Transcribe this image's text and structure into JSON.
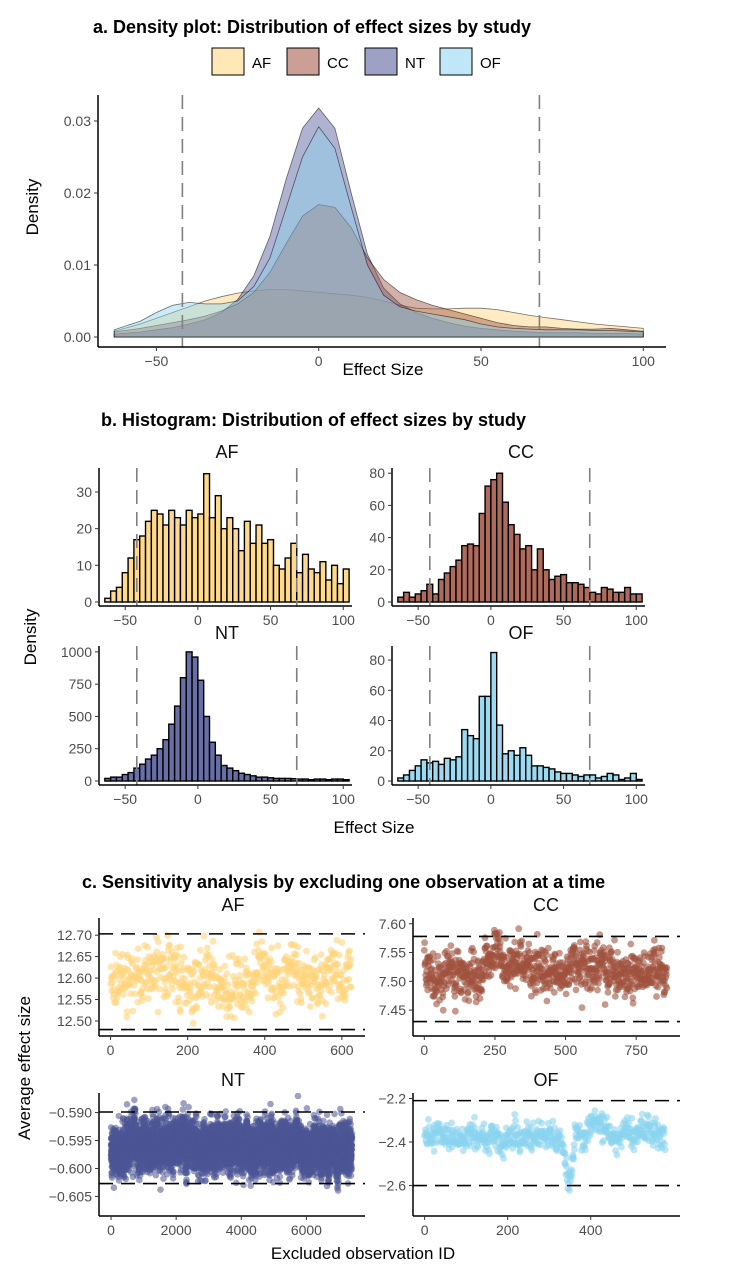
{
  "colors": {
    "AF": "#FFD37A",
    "CC": "#A0513E",
    "NT": "#4D5596",
    "OF": "#8BD3F0"
  },
  "panel_a": {
    "title": "a. Density plot: Distribution of effect sizes by study",
    "legend": [
      "AF",
      "CC",
      "NT",
      "OF"
    ],
    "xlabel": "Effect Size",
    "ylabel": "Density"
  },
  "panel_b": {
    "title": "b. Histogram: Distribution of effect sizes by study",
    "xlabel": "Effect Size",
    "ylabel": "Density",
    "facets": [
      "AF",
      "CC",
      "NT",
      "OF"
    ]
  },
  "panel_c": {
    "title": "c. Sensitivity analysis by excluding one observation at a time",
    "xlabel": "Excluded observation ID",
    "ylabel": "Average effect size",
    "facets": [
      "AF",
      "CC",
      "NT",
      "OF"
    ]
  },
  "chart_data": [
    {
      "type": "area",
      "title": "a. Density plot: Distribution of effect sizes by study",
      "xlabel": "Effect Size",
      "ylabel": "Density",
      "xlim": [
        -63,
        104
      ],
      "ylim": [
        0,
        0.033
      ],
      "x_ticks": [
        -50,
        0,
        50,
        100
      ],
      "x_tick_labels": [
        "−50",
        "0",
        "50",
        "100"
      ],
      "y_ticks": [
        0,
        0.01,
        0.02,
        0.03
      ],
      "y_tick_labels": [
        "0.00",
        "0.01",
        "0.02",
        "0.03"
      ],
      "legend_position": "top",
      "reference_lines_x": [
        -42,
        68
      ],
      "x": [
        -63,
        -55,
        -50,
        -45,
        -40,
        -35,
        -30,
        -25,
        -20,
        -15,
        -10,
        -5,
        0,
        5,
        10,
        15,
        20,
        25,
        30,
        35,
        40,
        45,
        50,
        55,
        60,
        65,
        70,
        75,
        80,
        85,
        90,
        95,
        100
      ],
      "series": [
        {
          "name": "AF",
          "values": [
            0.0008,
            0.0018,
            0.0026,
            0.0034,
            0.0042,
            0.005,
            0.0056,
            0.0061,
            0.0064,
            0.0066,
            0.0066,
            0.0064,
            0.0062,
            0.006,
            0.0058,
            0.0055,
            0.005,
            0.0044,
            0.004,
            0.0039,
            0.0039,
            0.004,
            0.004,
            0.0038,
            0.0034,
            0.003,
            0.0027,
            0.0024,
            0.0021,
            0.0018,
            0.0016,
            0.0014,
            0.0012
          ]
        },
        {
          "name": "CC",
          "values": [
            0.0007,
            0.0012,
            0.0016,
            0.002,
            0.0024,
            0.0029,
            0.0036,
            0.0046,
            0.0062,
            0.009,
            0.013,
            0.0168,
            0.0184,
            0.018,
            0.0152,
            0.011,
            0.008,
            0.0062,
            0.0052,
            0.0044,
            0.0038,
            0.0032,
            0.0026,
            0.002,
            0.0016,
            0.0014,
            0.0014,
            0.0012,
            0.0011,
            0.0011,
            0.0012,
            0.001,
            0.0008
          ]
        },
        {
          "name": "NT",
          "values": [
            0.0004,
            0.0007,
            0.001,
            0.0013,
            0.0018,
            0.0024,
            0.0034,
            0.0052,
            0.0085,
            0.014,
            0.022,
            0.029,
            0.0318,
            0.029,
            0.02,
            0.0115,
            0.0068,
            0.0046,
            0.0034,
            0.0026,
            0.002,
            0.0015,
            0.0012,
            0.001,
            0.0008,
            0.0007,
            0.0006,
            0.0006,
            0.0006,
            0.0005,
            0.0005,
            0.0005,
            0.0004
          ]
        },
        {
          "name": "OF",
          "values": [
            0.001,
            0.0022,
            0.0034,
            0.0044,
            0.0048,
            0.0046,
            0.0046,
            0.005,
            0.007,
            0.011,
            0.018,
            0.025,
            0.0292,
            0.0262,
            0.018,
            0.01,
            0.0058,
            0.0042,
            0.0036,
            0.0032,
            0.0028,
            0.0024,
            0.0018,
            0.0014,
            0.0012,
            0.0011,
            0.001,
            0.001,
            0.001,
            0.0009,
            0.0009,
            0.0008,
            0.0007
          ]
        }
      ]
    },
    {
      "type": "bar",
      "title": "b. Histogram: Distribution of effect sizes by study",
      "xlabel": "Effect Size",
      "ylabel": "Density",
      "bin_width": 4,
      "bin_start": -64,
      "xlim": [
        -68,
        106
      ],
      "reference_lines_x": [
        -42,
        68
      ],
      "x_ticks": [
        -50,
        0,
        50,
        100
      ],
      "x_tick_labels": [
        "−50",
        "0",
        "50",
        "100"
      ],
      "facets": [
        {
          "name": "AF",
          "ylim": [
            0,
            36
          ],
          "y_ticks": [
            0,
            10,
            20,
            30
          ],
          "values": [
            1,
            3,
            4,
            8,
            12,
            17,
            18,
            22,
            25,
            24,
            21,
            25,
            23,
            21,
            25,
            23,
            24,
            35,
            23,
            29,
            20,
            23,
            20,
            14,
            22,
            16,
            21,
            16,
            17,
            10,
            9,
            12,
            16,
            8,
            13,
            9,
            8,
            11,
            6,
            10,
            5,
            9
          ]
        },
        {
          "name": "CC",
          "ylim": [
            0,
            82
          ],
          "y_ticks": [
            0,
            20,
            40,
            60,
            80
          ],
          "values": [
            3,
            6,
            3,
            5,
            7,
            11,
            5,
            14,
            18,
            22,
            26,
            35,
            36,
            35,
            55,
            72,
            76,
            80,
            62,
            48,
            42,
            33,
            35,
            20,
            33,
            20,
            14,
            16,
            17,
            12,
            12,
            11,
            9,
            6,
            5,
            9,
            8,
            6,
            6,
            9,
            5,
            5
          ]
        },
        {
          "name": "NT",
          "ylim": [
            0,
            1030
          ],
          "y_ticks": [
            0,
            250,
            500,
            750,
            1000
          ],
          "values": [
            20,
            30,
            30,
            50,
            65,
            100,
            130,
            170,
            200,
            250,
            320,
            440,
            580,
            800,
            1000,
            960,
            780,
            500,
            300,
            200,
            120,
            100,
            80,
            60,
            50,
            40,
            30,
            30,
            25,
            20,
            20,
            20,
            18,
            15,
            15,
            10,
            15,
            15,
            10,
            15,
            15,
            10
          ]
        },
        {
          "name": "OF",
          "ylim": [
            0,
            88
          ],
          "y_ticks": [
            0,
            20,
            40,
            60,
            80
          ],
          "values": [
            2,
            4,
            7,
            10,
            14,
            12,
            13,
            11,
            15,
            14,
            16,
            34,
            30,
            28,
            56,
            56,
            85,
            37,
            18,
            20,
            17,
            22,
            17,
            10,
            10,
            9,
            8,
            6,
            5,
            5,
            4,
            3,
            4,
            4,
            2,
            3,
            5,
            4,
            1,
            2,
            5,
            1
          ]
        }
      ]
    },
    {
      "type": "scatter",
      "title": "c. Sensitivity analysis by excluding one observation at a time",
      "xlabel": "Excluded observation ID",
      "ylabel": "Average effect size",
      "facets": [
        {
          "name": "AF",
          "n": 625,
          "xlim": [
            -30,
            660
          ],
          "ylim": [
            12.465,
            12.74
          ],
          "x_ticks": [
            0,
            200,
            400,
            600
          ],
          "x_tick_labels": [
            "0",
            "200",
            "400",
            "600"
          ],
          "y_ticks": [
            12.5,
            12.55,
            12.6,
            12.65,
            12.7
          ],
          "y_tick_labels": [
            "12.50",
            "12.55",
            "12.60",
            "12.65",
            "12.70"
          ],
          "hlines": [
            12.48,
            12.703
          ],
          "y_center": 12.6,
          "y_spread": 0.06
        },
        {
          "name": "CC",
          "n": 860,
          "xlim": [
            -40,
            905
          ],
          "ylim": [
            7.405,
            7.61
          ],
          "x_ticks": [
            0,
            250,
            500,
            750
          ],
          "x_tick_labels": [
            "0",
            "250",
            "500",
            "750"
          ],
          "y_ticks": [
            7.45,
            7.5,
            7.55,
            7.6
          ],
          "y_tick_labels": [
            "7.45",
            "7.50",
            "7.55",
            "7.60"
          ],
          "hlines": [
            7.43,
            7.578
          ],
          "y_center": 7.518,
          "y_spread": 0.035
        },
        {
          "name": "NT",
          "n": 7400,
          "xlim": [
            -370,
            7800
          ],
          "ylim": [
            -0.6085,
            -0.5865
          ],
          "x_ticks": [
            0,
            2000,
            4000,
            6000
          ],
          "x_tick_labels": [
            "0",
            "2000",
            "4000",
            "6000"
          ],
          "y_ticks": [
            -0.605,
            -0.6,
            -0.595,
            -0.59
          ],
          "y_tick_labels": [
            "−0.605",
            "−0.600",
            "−0.595",
            "−0.590"
          ],
          "hlines": [
            -0.6027,
            -0.5899
          ],
          "y_center": -0.5963,
          "y_spread": 0.0035
        },
        {
          "name": "OF",
          "n": 580,
          "xlim": [
            -28,
            615
          ],
          "ylim": [
            -2.74,
            -2.175
          ],
          "x_ticks": [
            0,
            200,
            400
          ],
          "x_tick_labels": [
            "0",
            "200",
            "400"
          ],
          "y_ticks": [
            -2.6,
            -2.4,
            -2.2
          ],
          "y_tick_labels": [
            "−2.6",
            "−2.4",
            "−2.2"
          ],
          "hlines": [
            -2.6,
            -2.21
          ],
          "y_center": -2.37,
          "y_spread": 0.06
        }
      ]
    }
  ]
}
